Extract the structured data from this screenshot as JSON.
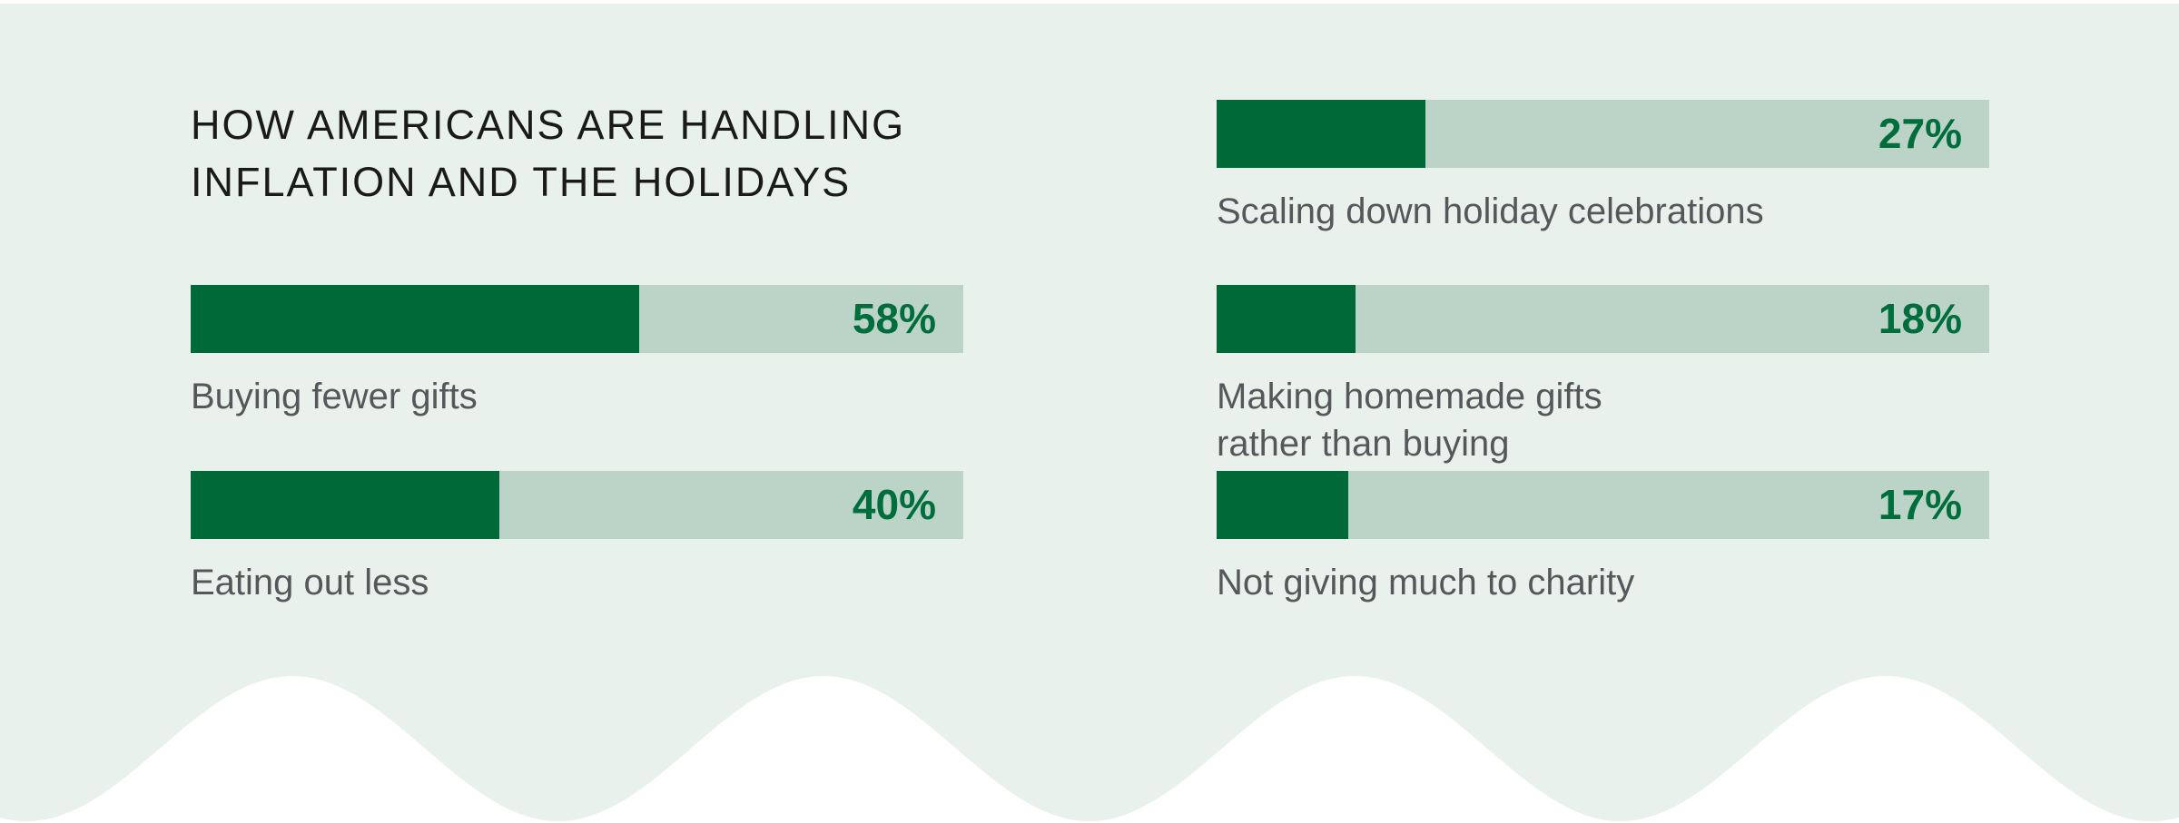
{
  "title": {
    "line1": "HOW AMERICANS ARE HANDLING",
    "line2": "INFLATION AND THE HOLIDAYS"
  },
  "colors": {
    "background": "#e9f1ec",
    "bar_track": "#bcd4c7",
    "bar_fill": "#006938",
    "percent_text": "#006e3c",
    "label_text": "#55585a",
    "title_text": "#1a1a1a",
    "wave": "#ffffff"
  },
  "chart_data": {
    "type": "bar",
    "orientation": "horizontal",
    "title": "HOW AMERICANS ARE HANDLING INFLATION AND THE HOLIDAYS",
    "unit": "%",
    "value_range": [
      0,
      100
    ],
    "grid": false,
    "legend": false,
    "categories": [
      "Buying fewer gifts",
      "Eating out less",
      "Scaling down holiday celebrations",
      "Making homemade gifts rather than buying",
      "Not giving much to charity"
    ],
    "values": [
      58,
      40,
      27,
      18,
      17
    ],
    "layout": "two columns: left column = first 2 bars + title, right column = last 3 bars; value labels right-aligned inside full-width tracks"
  },
  "bars": {
    "left": [
      {
        "label": "Buying fewer gifts",
        "value": 58,
        "display": "58%"
      },
      {
        "label": "Eating out less",
        "value": 40,
        "display": "40%"
      }
    ],
    "right": [
      {
        "label": "Scaling down holiday celebrations",
        "value": 27,
        "display": "27%"
      },
      {
        "label": "Making homemade gifts\nrather than buying",
        "value": 18,
        "display": "18%"
      },
      {
        "label": "Not giving much to charity",
        "value": 17,
        "display": "17%"
      }
    ]
  }
}
